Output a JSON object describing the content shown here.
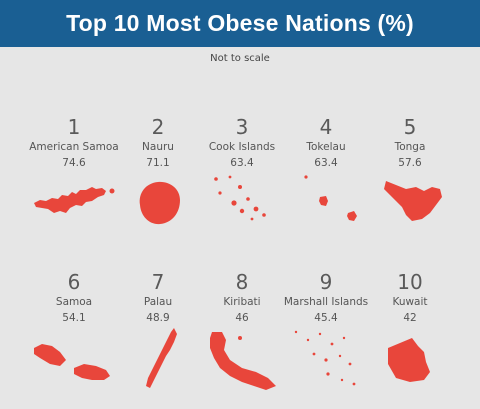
{
  "title": "Top 10 Most Obese Nations (%)",
  "subtitle": "Not to scale",
  "colors": {
    "header": "#1a5f93",
    "shape": "#e8463b",
    "background": "#e6e6e6"
  },
  "chart_data": {
    "type": "table",
    "title": "Top 10 Most Obese Nations (%)",
    "columns": [
      "rank",
      "country",
      "value"
    ],
    "rows": [
      {
        "rank": "1",
        "country": "American Samoa",
        "value": 74.6
      },
      {
        "rank": "2",
        "country": "Nauru",
        "value": 71.1
      },
      {
        "rank": "3",
        "country": "Cook Islands",
        "value": 63.4
      },
      {
        "rank": "4",
        "country": "Tokelau",
        "value": 63.4
      },
      {
        "rank": "5",
        "country": "Tonga",
        "value": 57.6
      },
      {
        "rank": "6",
        "country": "Samoa",
        "value": 54.1
      },
      {
        "rank": "7",
        "country": "Palau",
        "value": 48.9
      },
      {
        "rank": "8",
        "country": "Kiribati",
        "value": 46
      },
      {
        "rank": "9",
        "country": "Marshall Islands",
        "value": 45.4
      },
      {
        "rank": "10",
        "country": "Kuwait",
        "value": 42
      }
    ]
  }
}
